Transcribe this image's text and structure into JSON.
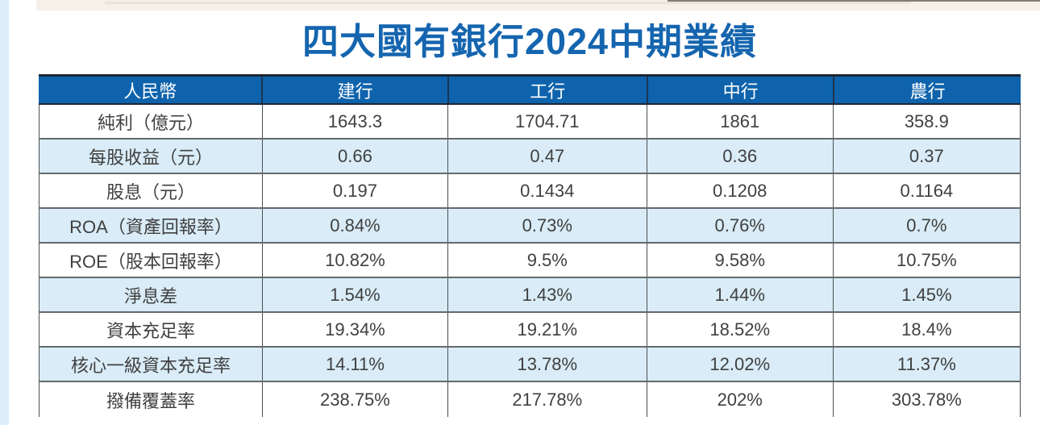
{
  "page": {
    "title": "四大國有銀行2024中期業績"
  },
  "chart_data": {
    "type": "table",
    "title": "四大國有銀行2024中期業績",
    "columns": [
      "人民幣",
      "建行",
      "工行",
      "中行",
      "農行"
    ],
    "rows": [
      {
        "label": "純利（億元）",
        "values": [
          "1643.3",
          "1704.71",
          "1861",
          "358.9"
        ]
      },
      {
        "label": "每股收益（元）",
        "values": [
          "0.66",
          "0.47",
          "0.36",
          "0.37"
        ]
      },
      {
        "label": "股息（元）",
        "values": [
          "0.197",
          "0.1434",
          "0.1208",
          "0.1164"
        ]
      },
      {
        "label": "ROA（資產回報率）",
        "values": [
          "0.84%",
          "0.73%",
          "0.76%",
          "0.7%"
        ]
      },
      {
        "label": "ROE（股本回報率）",
        "values": [
          "10.82%",
          "9.5%",
          "9.58%",
          "10.75%"
        ]
      },
      {
        "label": "淨息差",
        "values": [
          "1.54%",
          "1.43%",
          "1.44%",
          "1.45%"
        ]
      },
      {
        "label": "資本充足率",
        "values": [
          "19.34%",
          "19.21%",
          "18.52%",
          "18.4%"
        ]
      },
      {
        "label": "核心一級資本充足率",
        "values": [
          "14.11%",
          "13.78%",
          "12.02%",
          "11.37%"
        ]
      },
      {
        "label": "撥備覆蓋率",
        "values": [
          "238.75%",
          "217.78%",
          "202%",
          "303.78%"
        ]
      }
    ],
    "layout": {
      "striped_rows": true,
      "header_position": "top",
      "currency_note": "人民幣"
    }
  },
  "colors": {
    "title": "#1565af",
    "header_bg": "#0e63ac",
    "header_text": "#ffffff",
    "row_bg": "#ffffff",
    "row_alt_bg": "#d9ecf7",
    "cell_text": "#404040",
    "left_strip": "#ddeefa",
    "top_strip": "#f5f1e9"
  }
}
